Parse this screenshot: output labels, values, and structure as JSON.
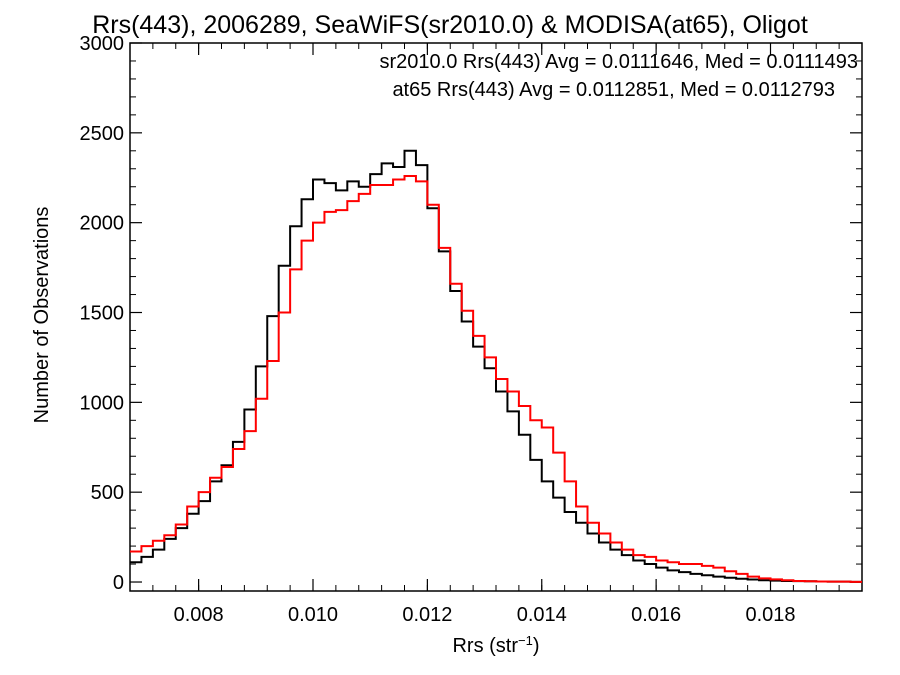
{
  "chart_data": {
    "type": "line",
    "title": "Rrs(443), 2006289, SeaWiFS(sr2010.0) & MODISA(at65), Oligot",
    "xlabel_main": "Rrs (str",
    "xlabel_sup": "−1",
    "xlabel_end": ")",
    "ylabel": "Number of Observations",
    "xlim": [
      0.0068,
      0.0196
    ],
    "ylim": [
      -50,
      3000
    ],
    "xticks": [
      0.008,
      0.01,
      0.012,
      0.014,
      0.016,
      0.018
    ],
    "xtick_labels": [
      "0.008",
      "0.010",
      "0.012",
      "0.014",
      "0.016",
      "0.018"
    ],
    "yticks": [
      0,
      500,
      1000,
      1500,
      2000,
      2500,
      3000
    ],
    "ytick_labels": [
      "0",
      "500",
      "1000",
      "1500",
      "2000",
      "2500",
      "3000"
    ],
    "legend_placement": "top-right",
    "series": [
      {
        "label": "sr2010.0 Rrs(443) Avg = 0.0111646, Med = 0.0111493",
        "color": "#000000",
        "x": [
          0.0068,
          0.007,
          0.0072,
          0.0074,
          0.0076,
          0.0078,
          0.008,
          0.0082,
          0.0084,
          0.0086,
          0.0088,
          0.009,
          0.0092,
          0.0094,
          0.0096,
          0.0098,
          0.01,
          0.0102,
          0.0104,
          0.0106,
          0.0108,
          0.011,
          0.0112,
          0.0114,
          0.0116,
          0.0118,
          0.012,
          0.0122,
          0.0124,
          0.0126,
          0.0128,
          0.013,
          0.0132,
          0.0134,
          0.0136,
          0.0138,
          0.014,
          0.0142,
          0.0144,
          0.0146,
          0.0148,
          0.015,
          0.0152,
          0.0154,
          0.0156,
          0.0158,
          0.016,
          0.0162,
          0.0164,
          0.0166,
          0.0168,
          0.017,
          0.0172,
          0.0174,
          0.0176,
          0.0178,
          0.018,
          0.0182,
          0.0184,
          0.0186,
          0.0188,
          0.019,
          0.0192,
          0.0194,
          0.0196
        ],
        "y": [
          110,
          140,
          180,
          240,
          300,
          380,
          450,
          560,
          650,
          780,
          960,
          1200,
          1480,
          1760,
          1980,
          2130,
          2240,
          2220,
          2180,
          2230,
          2200,
          2270,
          2330,
          2310,
          2400,
          2320,
          2080,
          1840,
          1620,
          1450,
          1310,
          1190,
          1060,
          950,
          820,
          680,
          560,
          470,
          390,
          330,
          270,
          220,
          180,
          150,
          120,
          100,
          80,
          65,
          55,
          45,
          38,
          30,
          24,
          18,
          14,
          10,
          8,
          6,
          5,
          4,
          3,
          2,
          2,
          1,
          1
        ]
      },
      {
        "label": "at65 Rrs(443) Avg = 0.0112851, Med = 0.0112793",
        "color": "#ff0000",
        "x": [
          0.0068,
          0.007,
          0.0072,
          0.0074,
          0.0076,
          0.0078,
          0.008,
          0.0082,
          0.0084,
          0.0086,
          0.0088,
          0.009,
          0.0092,
          0.0094,
          0.0096,
          0.0098,
          0.01,
          0.0102,
          0.0104,
          0.0106,
          0.0108,
          0.011,
          0.0112,
          0.0114,
          0.0116,
          0.0118,
          0.012,
          0.0122,
          0.0124,
          0.0126,
          0.0128,
          0.013,
          0.0132,
          0.0134,
          0.0136,
          0.0138,
          0.014,
          0.0142,
          0.0144,
          0.0146,
          0.0148,
          0.015,
          0.0152,
          0.0154,
          0.0156,
          0.0158,
          0.016,
          0.0162,
          0.0164,
          0.0166,
          0.0168,
          0.017,
          0.0172,
          0.0174,
          0.0176,
          0.0178,
          0.018,
          0.0182,
          0.0184,
          0.0186,
          0.0188,
          0.019,
          0.0192,
          0.0194,
          0.0196
        ],
        "y": [
          170,
          200,
          230,
          260,
          320,
          420,
          500,
          580,
          640,
          740,
          840,
          1020,
          1230,
          1500,
          1740,
          1900,
          2000,
          2060,
          2070,
          2120,
          2160,
          2210,
          2210,
          2240,
          2260,
          2230,
          2100,
          1860,
          1660,
          1510,
          1370,
          1250,
          1130,
          1060,
          980,
          900,
          860,
          720,
          560,
          420,
          330,
          270,
          220,
          180,
          150,
          140,
          120,
          110,
          100,
          100,
          90,
          80,
          60,
          45,
          30,
          20,
          15,
          10,
          6,
          4,
          3,
          2,
          2,
          1,
          1
        ]
      }
    ]
  }
}
